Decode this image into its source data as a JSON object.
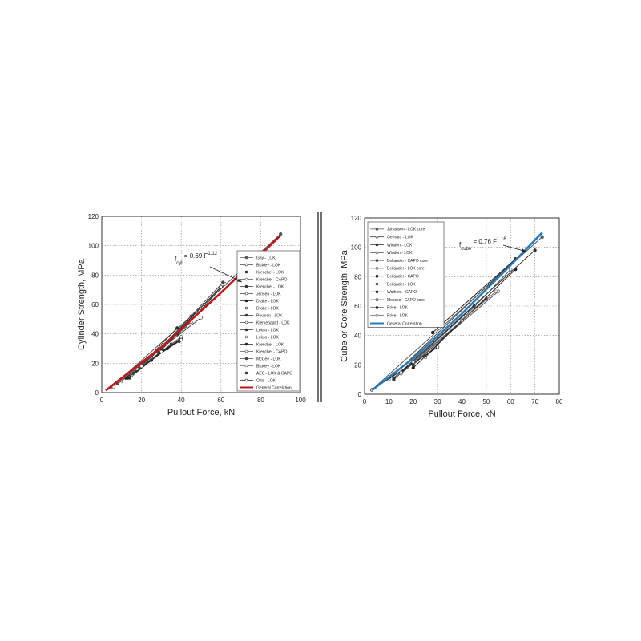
{
  "chart_data": [
    {
      "type": "line",
      "xlabel": "Pullout Force, kN",
      "ylabel": "Cylinder Strength, MPa",
      "annotation": [
        "f",
        "cyl",
        " = 0.69 F",
        "1.12"
      ],
      "xlim": [
        0,
        100
      ],
      "xticks": [
        0,
        20,
        40,
        60,
        80,
        100
      ],
      "ylim": [
        0,
        120
      ],
      "yticks": [
        0,
        20,
        40,
        60,
        80,
        100,
        120
      ],
      "grid": true,
      "legend": "lower right",
      "series": [
        {
          "name": "Gay - LOK",
          "color": "#555555",
          "x": [
            5,
            45,
            90
          ],
          "values": [
            4,
            52,
            108
          ]
        },
        {
          "name": "Bickley - LOK",
          "color": "#444444",
          "x": [
            10,
            40,
            62
          ],
          "values": [
            8,
            42,
            74
          ]
        },
        {
          "name": "Krenchel - LOK",
          "color": "#333333",
          "x": [
            15,
            38
          ],
          "values": [
            12,
            44
          ]
        },
        {
          "name": "Krenchel - CAPO",
          "color": "#555555",
          "x": [
            20,
            48
          ],
          "values": [
            18,
            55
          ]
        },
        {
          "name": "Krenchel - LOK",
          "color": "#333333",
          "x": [
            14,
            35
          ],
          "values": [
            10,
            33
          ]
        },
        {
          "name": "Jensen - LOK",
          "color": "#444444",
          "x": [
            25,
            50
          ],
          "values": [
            25,
            51
          ]
        },
        {
          "name": "Drake - LOK",
          "color": "#222222",
          "x": [
            12,
            40
          ],
          "values": [
            10,
            37
          ]
        },
        {
          "name": "Drake - LOK",
          "color": "#222222",
          "x": [
            30,
            60
          ],
          "values": [
            30,
            72
          ]
        },
        {
          "name": "Poulsen - LOK",
          "color": "#333333",
          "x": [
            22,
            39
          ],
          "values": [
            20,
            35
          ]
        },
        {
          "name": "Kierkegaard - LOK",
          "color": "#444444",
          "x": [
            15,
            42
          ],
          "values": [
            12,
            45
          ]
        },
        {
          "name": "Lekso - LOK",
          "color": "#333333",
          "x": [
            8,
            30
          ],
          "values": [
            6,
            30
          ]
        },
        {
          "name": "Lekso - LOK",
          "color": "#555555",
          "x": [
            18,
            45
          ],
          "values": [
            16,
            48
          ]
        },
        {
          "name": "Krenchel - LOK",
          "color": "#222222",
          "x": [
            13,
            33
          ],
          "values": [
            10,
            30
          ]
        },
        {
          "name": "Krenchel - CAPO",
          "color": "#555555",
          "x": [
            20,
            40
          ],
          "values": [
            18,
            38
          ]
        },
        {
          "name": "McGee - LOK",
          "color": "#444444",
          "x": [
            28,
            61
          ],
          "values": [
            28,
            75
          ]
        },
        {
          "name": "Bickley - LOK",
          "color": "#666666",
          "x": [
            6,
            32
          ],
          "values": [
            4,
            33
          ]
        },
        {
          "name": "AEC - LOK & CAPO",
          "color": "#333333",
          "x": [
            25,
            38
          ],
          "values": [
            22,
            40
          ]
        },
        {
          "name": "Otto - LOK",
          "color": "#222222",
          "x": [
            30,
            40
          ],
          "values": [
            28,
            36
          ]
        },
        {
          "name": "General Correlation",
          "color": "#c0161b",
          "x": [
            2,
            30,
            60,
            90
          ],
          "values": [
            1.5,
            31,
            68,
            107
          ]
        }
      ]
    },
    {
      "type": "line",
      "xlabel": "Pullout Force, kN",
      "ylabel": "Cube or Core Strength, MPa",
      "annotation": [
        "f",
        "cube",
        " = 0.76 F",
        "1.16"
      ],
      "xlim": [
        0,
        80
      ],
      "xticks": [
        0,
        10,
        20,
        30,
        40,
        50,
        60,
        70,
        80
      ],
      "ylim": [
        0,
        120
      ],
      "yticks": [
        0,
        20,
        40,
        60,
        80,
        100,
        120
      ],
      "grid": true,
      "legend": "upper left",
      "series": [
        {
          "name": "Johansen - LOK core",
          "color": "#555555",
          "x": [
            3,
            73
          ],
          "values": [
            3,
            107
          ]
        },
        {
          "name": "Gerhard - LOK",
          "color": "#444444",
          "x": [
            10,
            62
          ],
          "values": [
            10,
            92
          ]
        },
        {
          "name": "Winden - LOK",
          "color": "#333333",
          "x": [
            12,
            45
          ],
          "values": [
            10,
            60
          ]
        },
        {
          "name": "Winden - LOK",
          "color": "#555555",
          "x": [
            15,
            55
          ],
          "values": [
            14,
            70
          ]
        },
        {
          "name": "Bellander - CAPO core",
          "color": "#444444",
          "x": [
            20,
            50
          ],
          "values": [
            20,
            65
          ]
        },
        {
          "name": "Bellander - LOK core",
          "color": "#555555",
          "x": [
            25,
            60
          ],
          "values": [
            25,
            85
          ]
        },
        {
          "name": "Bellander - CAPO",
          "color": "#222222",
          "x": [
            20,
            62
          ],
          "values": [
            18,
            85
          ]
        },
        {
          "name": "Bellander - LOK",
          "color": "#222222",
          "x": [
            3,
            30
          ],
          "values": [
            3,
            32
          ]
        },
        {
          "name": "Wothers - CAPO",
          "color": "#333333",
          "x": [
            12,
            70
          ],
          "values": [
            11,
            98
          ]
        },
        {
          "name": "Moczko - CAPO core",
          "color": "#222222",
          "x": [
            15,
            40
          ],
          "values": [
            15,
            50
          ]
        },
        {
          "name": "Price - LOK",
          "color": "#222222",
          "x": [
            28,
            62
          ],
          "values": [
            42,
            92
          ]
        },
        {
          "name": "Price - LOK",
          "color": "#666666",
          "x": [
            20,
            54
          ],
          "values": [
            22,
            70
          ]
        },
        {
          "name": "General Correlation",
          "color": "#2a7ab8",
          "x": [
            3,
            20,
            40,
            60,
            73
          ],
          "values": [
            2.7,
            24.5,
            54.9,
            87.8,
            110
          ]
        }
      ]
    }
  ]
}
